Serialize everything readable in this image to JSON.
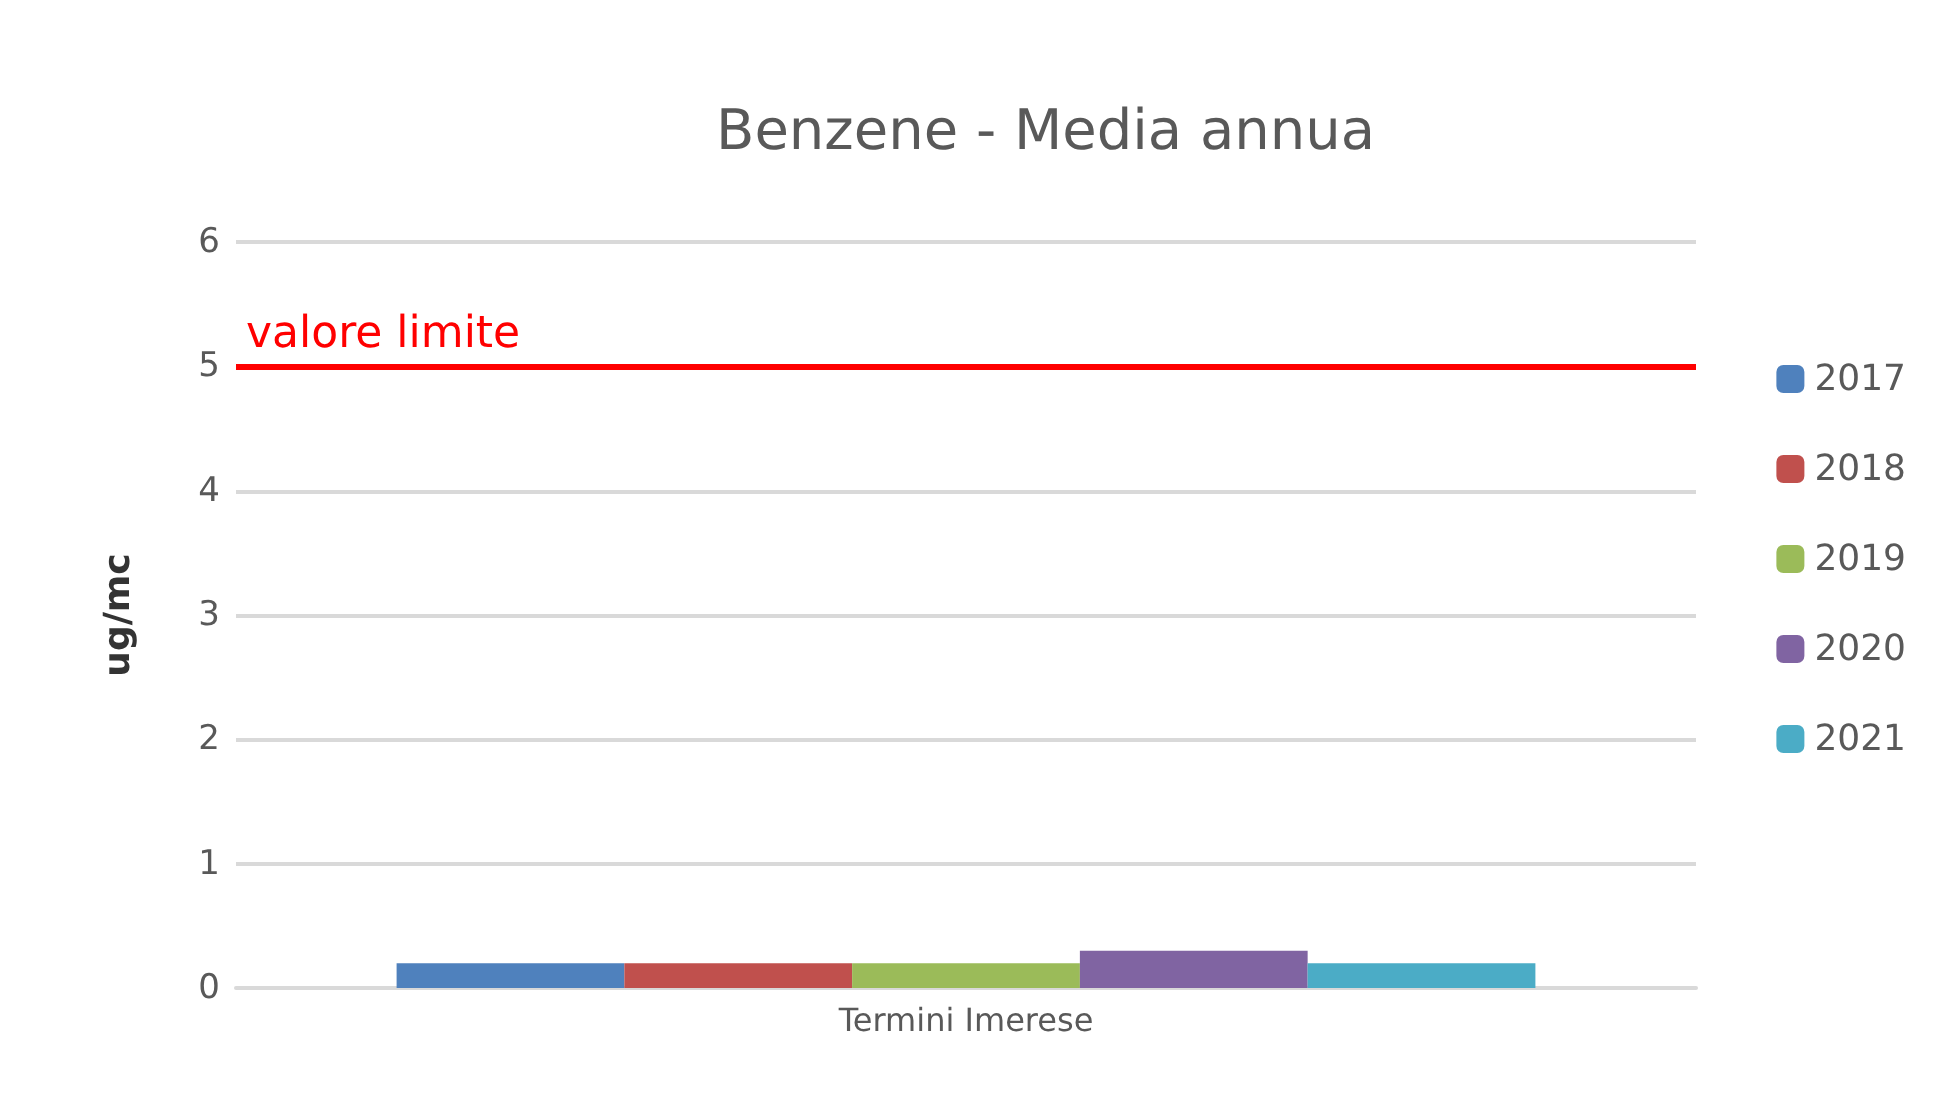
{
  "chart_data": {
    "type": "bar",
    "title": "Benzene - Media annua",
    "ylabel": "ug/mc",
    "categories": [
      "Termini Imerese"
    ],
    "series": [
      {
        "name": "2017",
        "color": "#4f81bd",
        "values": [
          0.2
        ]
      },
      {
        "name": "2018",
        "color": "#c0504d",
        "values": [
          0.2
        ]
      },
      {
        "name": "2019",
        "color": "#9bbb59",
        "values": [
          0.2
        ]
      },
      {
        "name": "2020",
        "color": "#8064a2",
        "values": [
          0.3
        ]
      },
      {
        "name": "2021",
        "color": "#4bacc6",
        "values": [
          0.2
        ]
      }
    ],
    "ylim": [
      0,
      6
    ],
    "yticks": [
      0,
      1,
      2,
      3,
      4,
      5,
      6
    ],
    "grid": "y",
    "legend": "right",
    "ref_lines": [
      {
        "axis": "y",
        "value": 5,
        "label": "valore limite",
        "color": "#ff0000"
      }
    ]
  }
}
